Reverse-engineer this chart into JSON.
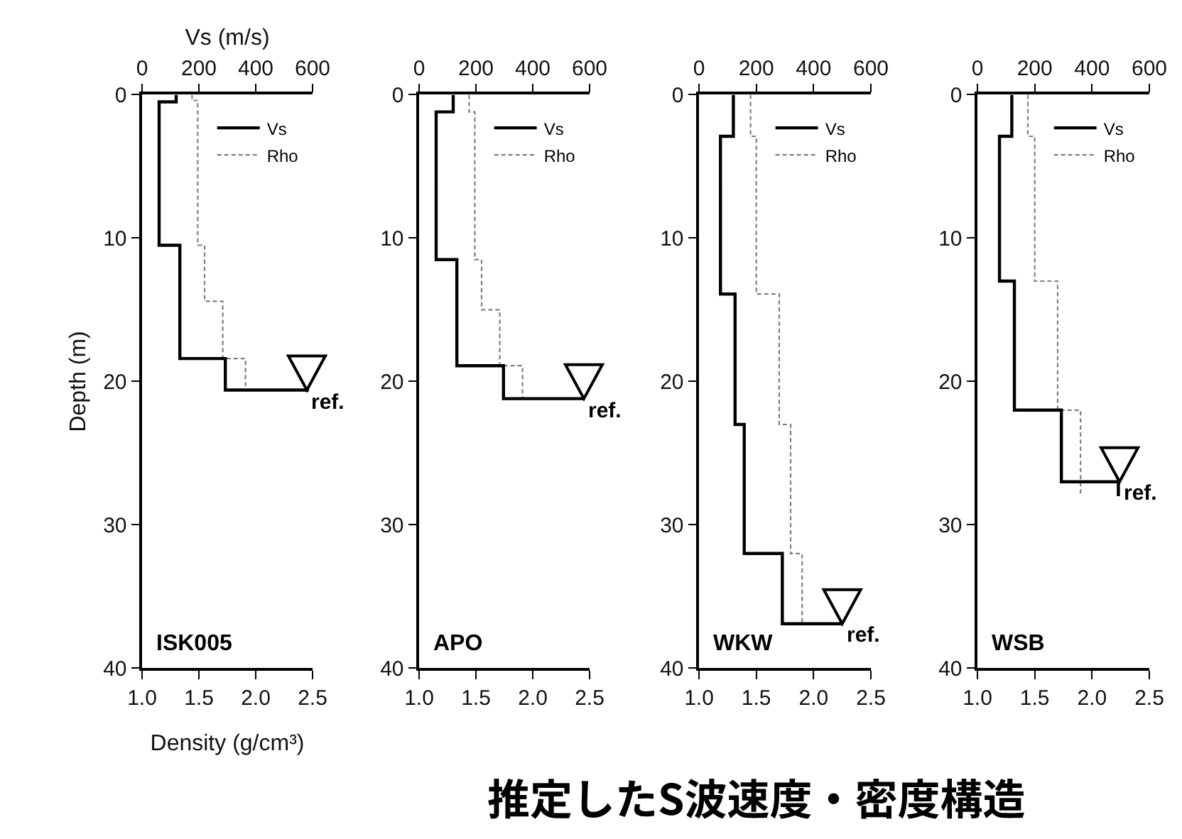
{
  "chart_data": [
    {
      "type": "line",
      "title": "ISK005",
      "xlabel": "Density (g/cm³)",
      "x2label": "Vs (m/s)",
      "ylabel": "Depth (m)",
      "xlim": [
        1.0,
        2.5
      ],
      "xticks": [
        {
          "value": 1.0,
          "label": "1.0"
        },
        {
          "value": 1.5,
          "label": "1.5"
        },
        {
          "value": 2.0,
          "label": "2.0"
        },
        {
          "value": 2.5,
          "label": "2.5"
        }
      ],
      "x2lim": [
        0,
        600
      ],
      "x2ticks": [
        0,
        200,
        400,
        600
      ],
      "ylim": [
        40,
        0
      ],
      "yticks": [
        0,
        10,
        20,
        30,
        40
      ],
      "legend": "top right",
      "grid": false,
      "series": [
        {
          "name": "Vs",
          "color": "#000000",
          "axis": "x2",
          "line_style": "solid",
          "x": [
            120,
            120,
            60,
            60,
            133,
            133,
            293,
            293,
            587
          ],
          "values": [
            0,
            0.5,
            0.5,
            10.5,
            10.5,
            18.4,
            18.4,
            20.6,
            20.6
          ]
        },
        {
          "name": "Rho",
          "color": "#808080",
          "line_style": "dashed",
          "x": [
            1.44,
            1.44,
            1.49,
            1.49,
            1.55,
            1.55,
            1.71,
            1.71,
            1.91,
            1.91
          ],
          "values": [
            0,
            0.4,
            0.4,
            10.5,
            10.5,
            14.4,
            14.4,
            18.4,
            18.4,
            20.6
          ]
        }
      ],
      "annotations": [
        {
          "text": "ref.",
          "x": 2.45,
          "y": 20.6
        },
        "推定したS波速度・密度構造"
      ]
    },
    {
      "type": "line",
      "title": "APO",
      "xlim": [
        1.0,
        2.5
      ],
      "xticks": [
        {
          "value": 1.0,
          "label": "1.0"
        },
        {
          "value": 1.5,
          "label": "1.5"
        },
        {
          "value": 2.0,
          "label": "2.0"
        },
        {
          "value": 2.5,
          "label": "2.5"
        }
      ],
      "x2lim": [
        0,
        600
      ],
      "x2ticks": [
        0,
        200,
        400,
        600
      ],
      "ylim": [
        40,
        0
      ],
      "yticks": [
        0,
        10,
        20,
        30,
        40
      ],
      "legend": "top right",
      "grid": false,
      "series": [
        {
          "name": "Vs",
          "color": "#000000",
          "axis": "x2",
          "line_style": "solid",
          "x": [
            120,
            120,
            60,
            60,
            133,
            133,
            297,
            297,
            580
          ],
          "values": [
            0,
            1.2,
            1.2,
            11.5,
            11.5,
            18.9,
            18.9,
            21.2,
            21.2
          ]
        },
        {
          "name": "Rho",
          "color": "#808080",
          "line_style": "dashed",
          "x": [
            1.44,
            1.44,
            1.49,
            1.49,
            1.55,
            1.55,
            1.71,
            1.71,
            1.91,
            1.91
          ],
          "values": [
            0,
            1.2,
            1.2,
            11.5,
            11.5,
            15.0,
            15.0,
            18.9,
            18.9,
            21.2
          ]
        }
      ],
      "annotations": [
        {
          "text": "ref.",
          "x": 2.45,
          "y": 21.2
        }
      ]
    },
    {
      "type": "line",
      "title": "WKW",
      "xlim": [
        1.0,
        2.5
      ],
      "xticks": [
        {
          "value": 1.0,
          "label": "1.0"
        },
        {
          "value": 1.5,
          "label": "1.5"
        },
        {
          "value": 2.0,
          "label": "2.0"
        },
        {
          "value": 2.5,
          "label": "2.5"
        }
      ],
      "x2lim": [
        0,
        600
      ],
      "x2ticks": [
        0,
        200,
        400,
        600
      ],
      "ylim": [
        40,
        0
      ],
      "yticks": [
        0,
        10,
        20,
        30,
        40
      ],
      "legend": "top right",
      "grid": false,
      "series": [
        {
          "name": "Vs",
          "color": "#000000",
          "axis": "x2",
          "line_style": "solid",
          "x": [
            120,
            120,
            75,
            75,
            126,
            126,
            158,
            158,
            291,
            291,
            500
          ],
          "values": [
            0,
            2.9,
            2.9,
            13.9,
            13.9,
            23.0,
            23.0,
            32.0,
            32.0,
            36.9,
            36.9
          ]
        },
        {
          "name": "Rho",
          "color": "#808080",
          "line_style": "dashed",
          "x": [
            1.45,
            1.45,
            1.5,
            1.5,
            1.7,
            1.7,
            1.8,
            1.8,
            1.9,
            1.9
          ],
          "values": [
            0,
            2.9,
            2.9,
            13.9,
            13.9,
            23.0,
            23.0,
            32.0,
            32.0,
            36.9
          ]
        }
      ],
      "annotations": [
        {
          "text": "ref.",
          "x": 2.25,
          "y": 36.9
        }
      ]
    },
    {
      "type": "line",
      "title": "WSB",
      "xlim": [
        1.0,
        2.5
      ],
      "xticks": [
        {
          "value": 1.0,
          "label": "1.0"
        },
        {
          "value": 1.5,
          "label": "1.5"
        },
        {
          "value": 2.0,
          "label": "2.0"
        },
        {
          "value": 2.5,
          "label": "2.5"
        }
      ],
      "x2lim": [
        0,
        600
      ],
      "x2ticks": [
        0,
        200,
        400,
        600
      ],
      "ylim": [
        40,
        0
      ],
      "yticks": [
        0,
        10,
        20,
        30,
        40
      ],
      "legend": "top right",
      "grid": false,
      "series": [
        {
          "name": "Vs",
          "color": "#000000",
          "axis": "x2",
          "line_style": "solid",
          "x": [
            120,
            120,
            77,
            77,
            129,
            129,
            293,
            293,
            492,
            492
          ],
          "values": [
            0,
            2.9,
            2.9,
            13.0,
            13.0,
            22.0,
            22.0,
            27.0,
            27.0,
            28.0
          ]
        },
        {
          "name": "Rho",
          "color": "#808080",
          "line_style": "dashed",
          "x": [
            1.44,
            1.44,
            1.5,
            1.5,
            1.7,
            1.7,
            1.9,
            1.9
          ],
          "values": [
            0,
            2.9,
            2.9,
            13.0,
            13.0,
            22.0,
            22.0,
            28.0
          ]
        }
      ],
      "annotations": [
        {
          "text": "ref.",
          "x": 2.24,
          "y": 27.0
        }
      ]
    }
  ]
}
